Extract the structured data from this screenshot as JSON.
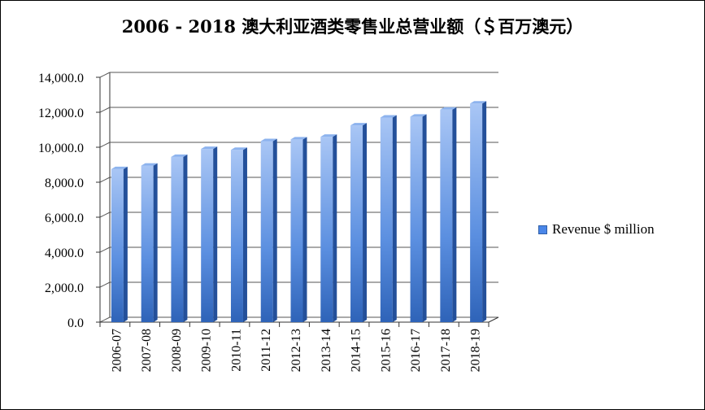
{
  "chart_data": {
    "type": "bar",
    "title": "2006 - 2018 澳大利亚酒类零售业总营业额（＄百万澳元）",
    "categories": [
      "2006-07",
      "2007-08",
      "2008-09",
      "2009-10",
      "2010-11",
      "2011-12",
      "2012-13",
      "2013-14",
      "2014-15",
      "2015-16",
      "2016-17",
      "2017-18",
      "2018-19"
    ],
    "series": [
      {
        "name": "Revenue $ million",
        "values": [
          8750,
          8950,
          9450,
          9900,
          9850,
          10350,
          10450,
          10600,
          11250,
          11700,
          11750,
          12150,
          12500
        ]
      }
    ],
    "y_ticks": [
      "0.0",
      "2,000.0",
      "4,000.0",
      "6,000.0",
      "8,000.0",
      "10,000.0",
      "12,000.0",
      "14,000.0"
    ],
    "ylim": [
      0,
      14000
    ],
    "grid": true,
    "legend_position": "right",
    "bar_style": "3d-column",
    "colors": {
      "bar_light": "#a9c6f5",
      "bar_mid": "#5b8fe0",
      "bar_dark": "#2e63b8",
      "bar_side": "#24509a",
      "bar_top": "#8db3ee",
      "grid": "#555555",
      "axis": "#333333"
    }
  }
}
